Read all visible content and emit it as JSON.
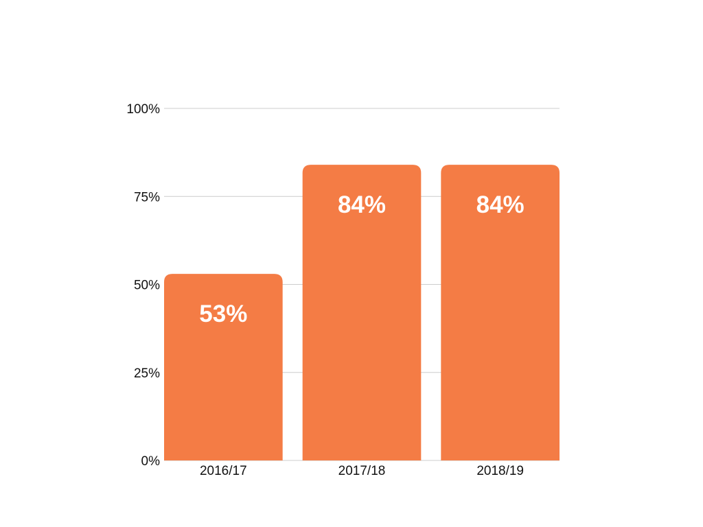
{
  "chart_data": {
    "type": "bar",
    "categories": [
      "2016/17",
      "2017/18",
      "2018/19"
    ],
    "values": [
      53,
      84,
      84
    ],
    "data_labels": [
      "53%",
      "84%",
      "84%"
    ],
    "title": "",
    "xlabel": "",
    "ylabel": "",
    "ylim": [
      0,
      100
    ],
    "yticks": [
      0,
      25,
      50,
      75,
      100
    ],
    "ytick_labels": [
      "0%",
      "25%",
      "50%",
      "75%",
      "100%"
    ],
    "grid": true,
    "legend": "none",
    "colors": {
      "bar": "#f47c45",
      "grid": "#cccccc",
      "data_label": "#ffffff",
      "text": "#111111"
    }
  }
}
